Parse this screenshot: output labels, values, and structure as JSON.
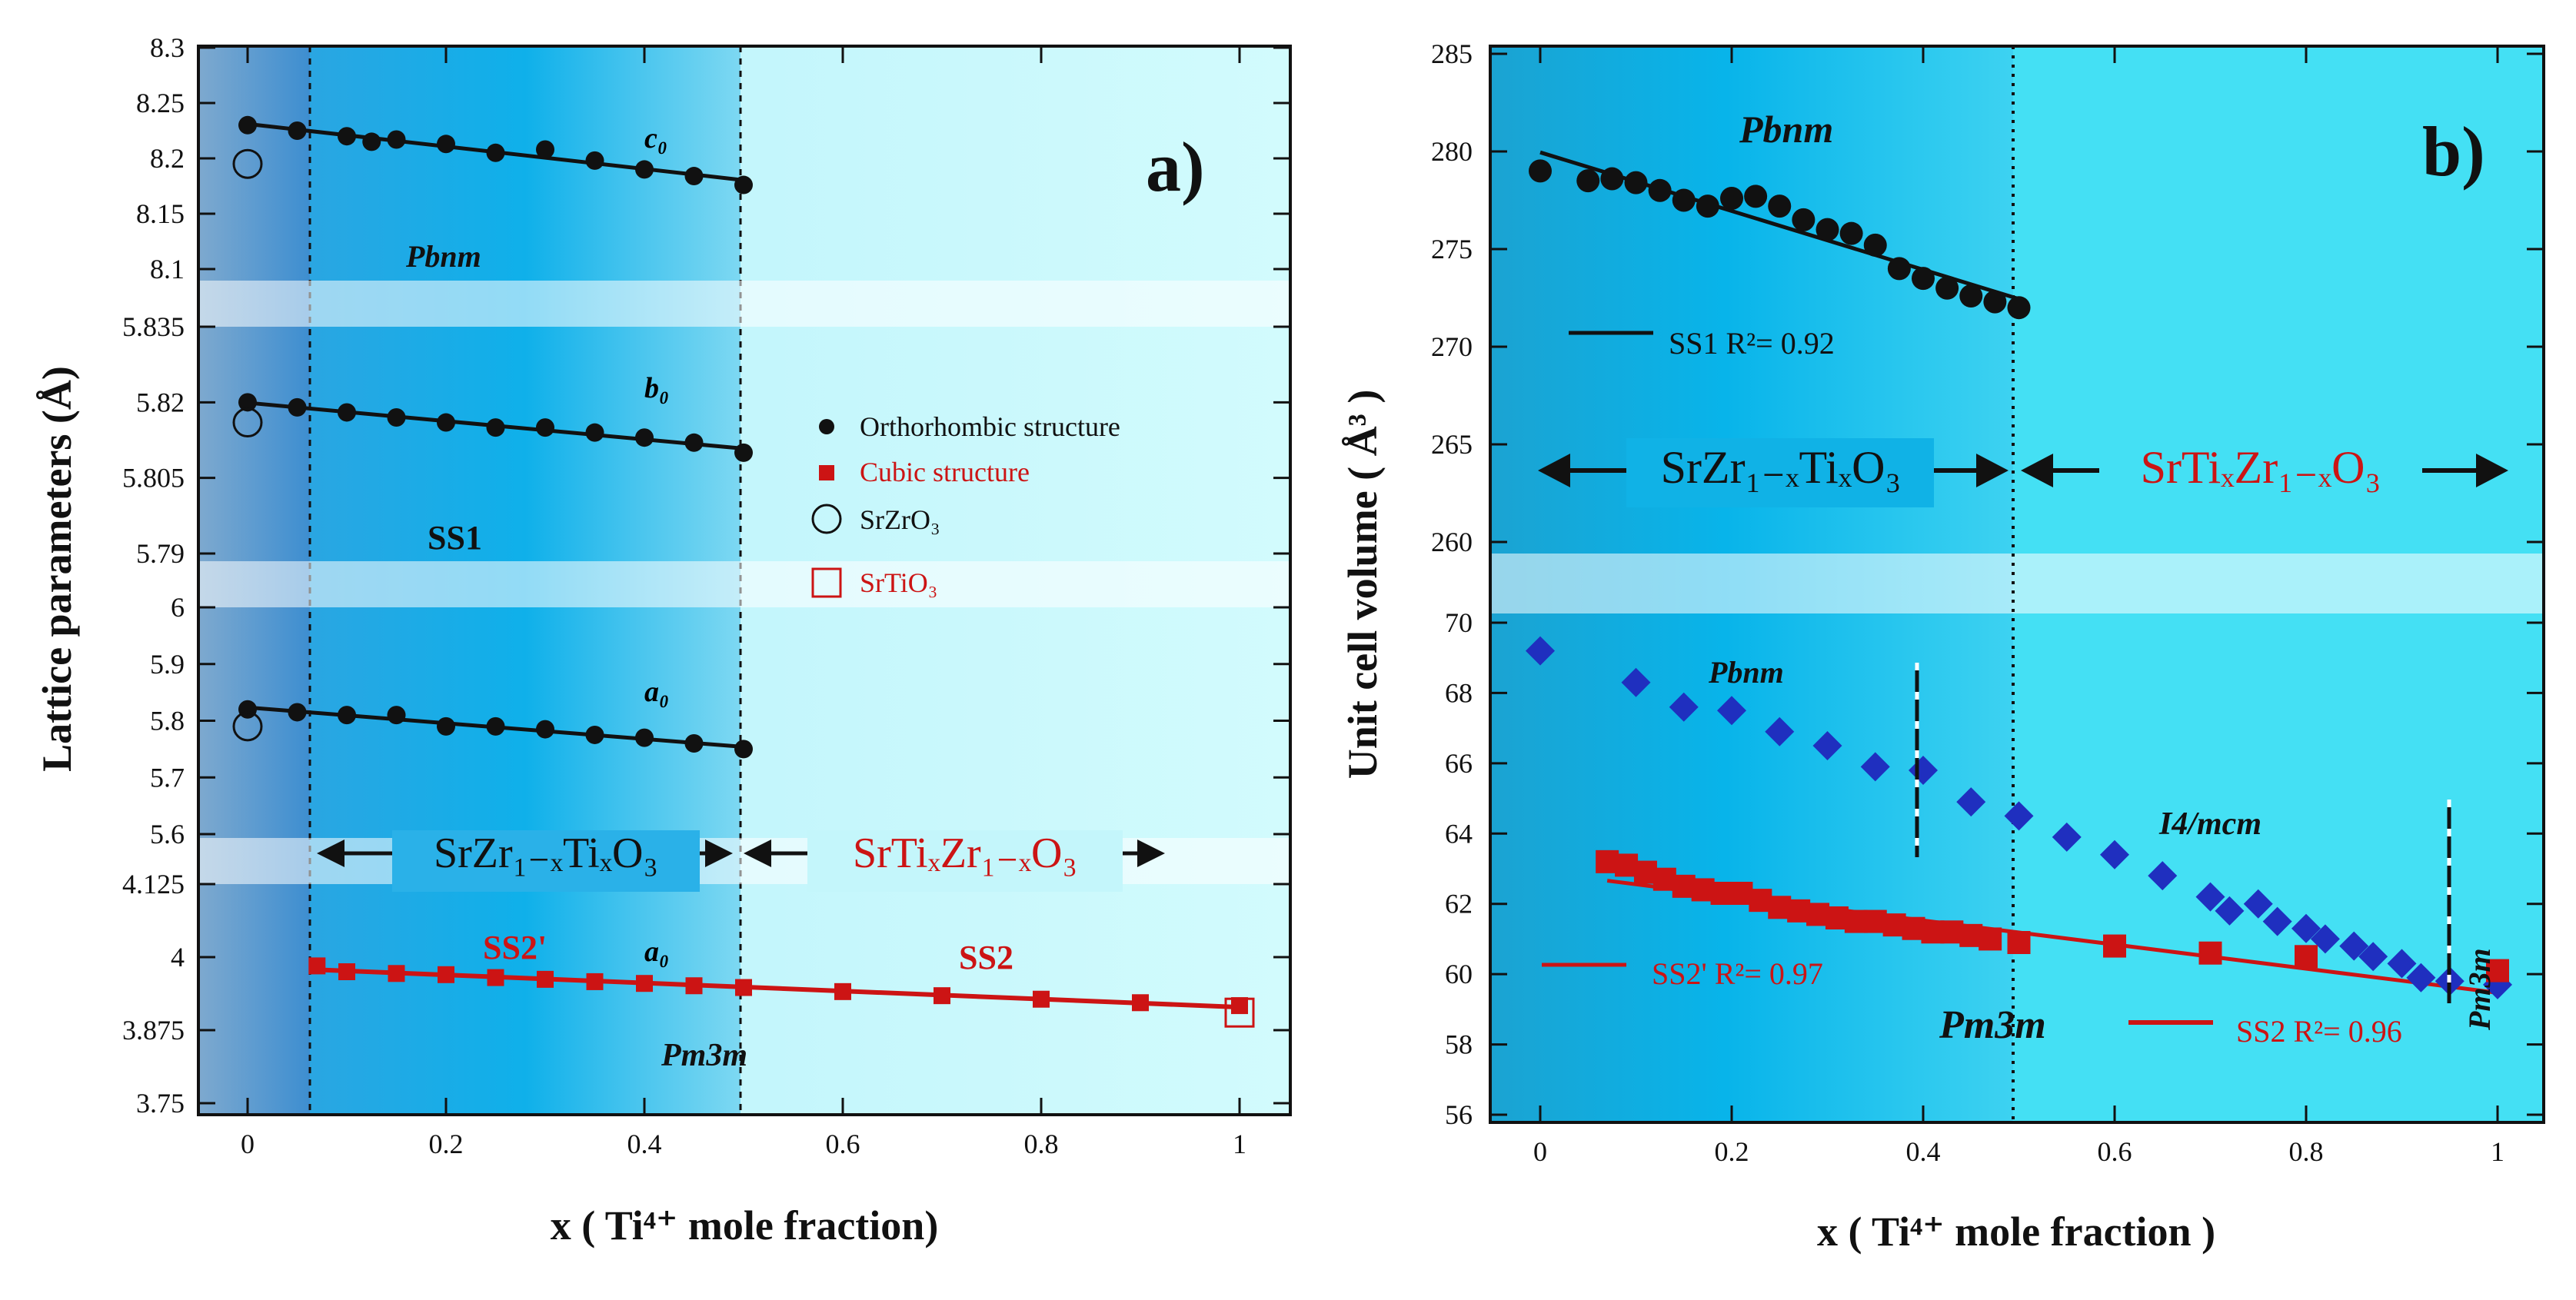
{
  "colors": {
    "ortho": "#111111",
    "cubic": "#cc1414",
    "diamond": "#1f2fbf",
    "region_dark": "#0aa8e0",
    "region_light": "#bff5fb",
    "region_grey": "#6f9ec9"
  },
  "panel_a": {
    "label": "a)",
    "xlabel": "x ( Ti⁴⁺ mole fraction)",
    "ylabel": "Lattice parameters (Å)",
    "xticks": [
      "0",
      "0.2",
      "0.4",
      "0.6",
      "0.8",
      "1"
    ],
    "ticks_c": [
      "8.3",
      "8.25",
      "8.2",
      "8.15",
      "8.1"
    ],
    "ticks_b": [
      "5.835",
      "5.82",
      "5.805",
      "5.79"
    ],
    "ticks_a": [
      "6",
      "5.9",
      "5.8",
      "5.7",
      "5.6"
    ],
    "ticks_cubic": [
      "4.125",
      "4",
      "3.875",
      "3.75"
    ],
    "lbl_c0": "c₀",
    "lbl_b0": "b₀",
    "lbl_a0": "a₀",
    "lbl_a0_cubic": "a₀",
    "pbnm": "Pbnm",
    "ss1": "SS1",
    "ss2p": "SS2'",
    "ss2": "SS2",
    "pm3m": "Pm3m",
    "region_left": "SrZr₁₋ₓTiₓO₃",
    "region_right": "SrTiₓZr₁₋ₓO₃",
    "legend": {
      "ortho": "Orthorhombic structure",
      "cubic": "Cubic structure",
      "srzro3": "SrZrO₃",
      "srtio3": "SrTiO₃"
    }
  },
  "panel_b": {
    "label": "b)",
    "xlabel": "x ( Ti⁴⁺ mole fraction )",
    "ylabel": "Unit cell volume ( Å³ )",
    "xticks": [
      "0",
      "0.2",
      "0.4",
      "0.6",
      "0.8",
      "1"
    ],
    "ticks_top": [
      "285",
      "280",
      "275",
      "270",
      "265",
      "260"
    ],
    "ticks_bot": [
      "70",
      "68",
      "66",
      "64",
      "62",
      "60",
      "58",
      "56"
    ],
    "pbnm_top": "Pbnm",
    "pbnm_mid": "Pbnm",
    "i4mcm": "I4/mcm",
    "pm3m": "Pm3m",
    "pm3m_v": "Pm3m",
    "fit_ss1": "SS1 R²= 0.92",
    "fit_ss2p": "SS2' R²= 0.97",
    "fit_ss2": "SS2  R²= 0.96",
    "region_left": "SrZr₁₋ₓTiₓO₃",
    "region_right": "SrTiₓZr₁₋ₓO₃"
  },
  "chart_data": [
    {
      "type": "scatter",
      "title": "",
      "xlabel": "x ( Ti⁴⁺ mole fraction)",
      "ylabel": "Lattice parameters (Å)",
      "xlim": [
        -0.05,
        1.05
      ],
      "grid": false,
      "legend_position": "right-middle",
      "series": [
        {
          "name": "Orthorhombic structure",
          "param": "c0",
          "ylim": [
            8.1,
            8.3
          ],
          "x": [
            0,
            0.05,
            0.1,
            0.125,
            0.15,
            0.2,
            0.25,
            0.3,
            0.35,
            0.4,
            0.45,
            0.5
          ],
          "y": [
            8.23,
            8.225,
            8.22,
            8.215,
            8.217,
            8.213,
            8.205,
            8.208,
            8.198,
            8.19,
            8.184,
            8.176
          ]
        },
        {
          "name": "Orthorhombic structure",
          "param": "b0",
          "ylim": [
            5.79,
            5.835
          ],
          "x": [
            0,
            0.05,
            0.1,
            0.15,
            0.2,
            0.25,
            0.3,
            0.35,
            0.4,
            0.45,
            0.5
          ],
          "y": [
            5.82,
            5.819,
            5.818,
            5.817,
            5.816,
            5.815,
            5.815,
            5.814,
            5.813,
            5.812,
            5.81
          ]
        },
        {
          "name": "Orthorhombic structure",
          "param": "a0",
          "ylim": [
            5.6,
            6.0
          ],
          "x": [
            0,
            0.05,
            0.1,
            0.15,
            0.2,
            0.25,
            0.3,
            0.35,
            0.4,
            0.45,
            0.5
          ],
          "y": [
            5.82,
            5.815,
            5.81,
            5.81,
            5.79,
            5.79,
            5.785,
            5.775,
            5.77,
            5.76,
            5.75
          ]
        },
        {
          "name": "Cubic structure",
          "param": "a0 (cubic)",
          "ylim": [
            3.75,
            4.125
          ],
          "x": [
            0.07,
            0.1,
            0.15,
            0.2,
            0.25,
            0.3,
            0.35,
            0.4,
            0.45,
            0.5,
            0.6,
            0.7,
            0.8,
            0.9,
            1.0
          ],
          "y": [
            3.985,
            3.975,
            3.972,
            3.97,
            3.965,
            3.962,
            3.958,
            3.955,
            3.951,
            3.948,
            3.941,
            3.934,
            3.928,
            3.922,
            3.917
          ]
        },
        {
          "name": "SrZrO₃",
          "x": [
            0,
            0,
            0
          ],
          "y": [
            8.195,
            5.816,
            5.79
          ]
        },
        {
          "name": "SrTiO₃",
          "x": [
            1.0
          ],
          "y": [
            3.905
          ]
        }
      ]
    },
    {
      "type": "scatter",
      "title": "",
      "xlabel": "x ( Ti⁴⁺ mole fraction )",
      "ylabel": "Unit cell volume ( Å³ )",
      "xlim": [
        -0.05,
        1.05
      ],
      "grid": false,
      "series": [
        {
          "name": "SS1",
          "ylim": [
            260,
            285
          ],
          "x": [
            0,
            0.05,
            0.075,
            0.1,
            0.125,
            0.15,
            0.175,
            0.2,
            0.225,
            0.25,
            0.275,
            0.3,
            0.325,
            0.35,
            0.375,
            0.4,
            0.425,
            0.45,
            0.475,
            0.5
          ],
          "y": [
            279,
            278.5,
            278.6,
            278.4,
            278.0,
            277.5,
            277.2,
            277.6,
            277.7,
            277.2,
            276.5,
            276.0,
            275.8,
            275.2,
            274.0,
            273.5,
            273.0,
            272.6,
            272.3,
            272.0
          ]
        },
        {
          "name": "SS2'",
          "ylim": [
            56,
            70
          ],
          "x": [
            0.07,
            0.09,
            0.11,
            0.13,
            0.15,
            0.17,
            0.19,
            0.21,
            0.23,
            0.25,
            0.27,
            0.29,
            0.31,
            0.33,
            0.35,
            0.37,
            0.39,
            0.41,
            0.43,
            0.45,
            0.47,
            0.5
          ],
          "y": [
            63.2,
            63.1,
            62.9,
            62.7,
            62.5,
            62.4,
            62.3,
            62.3,
            62.1,
            61.9,
            61.8,
            61.7,
            61.6,
            61.5,
            61.5,
            61.4,
            61.3,
            61.2,
            61.2,
            61.1,
            61.0,
            60.9
          ]
        },
        {
          "name": "SS2",
          "ylim": [
            56,
            70
          ],
          "x": [
            0.6,
            0.7,
            0.8,
            1.0
          ],
          "y": [
            60.8,
            60.6,
            60.5,
            60.1
          ]
        },
        {
          "name": "Diamonds",
          "ylim": [
            56,
            70
          ],
          "x": [
            0,
            0.1,
            0.15,
            0.2,
            0.25,
            0.3,
            0.35,
            0.4,
            0.45,
            0.5,
            0.55,
            0.6,
            0.65,
            0.7,
            0.72,
            0.75,
            0.77,
            0.8,
            0.82,
            0.85,
            0.87,
            0.9,
            0.92,
            0.95,
            1.0
          ],
          "y": [
            69.2,
            68.3,
            67.6,
            67.5,
            66.9,
            66.5,
            65.9,
            65.8,
            64.9,
            64.5,
            63.9,
            63.4,
            62.8,
            62.2,
            61.8,
            62.0,
            61.5,
            61.3,
            61.0,
            60.8,
            60.5,
            60.3,
            59.9,
            59.8,
            59.7
          ]
        }
      ]
    }
  ]
}
